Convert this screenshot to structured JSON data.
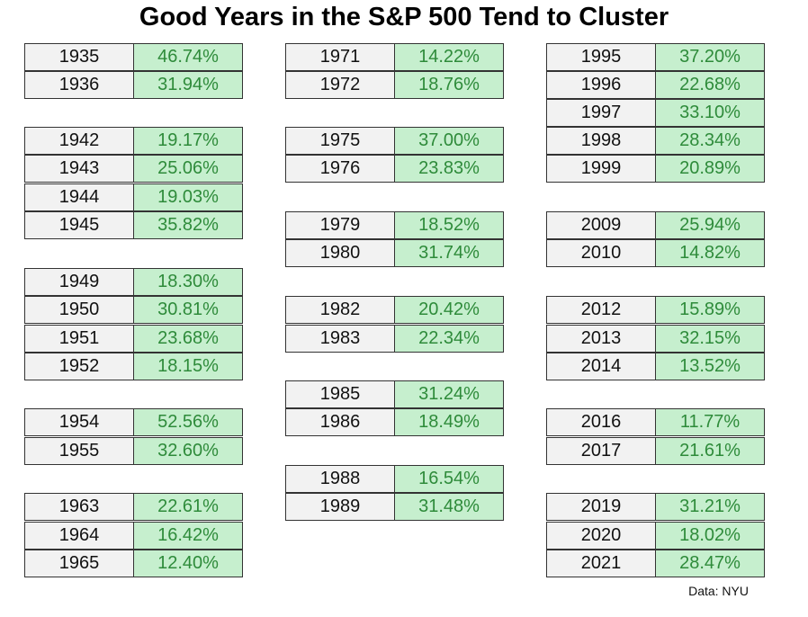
{
  "chart_data": {
    "type": "table",
    "title": "Good Years in the S&P 500 Tend to Cluster",
    "source": "Data: NYU",
    "columns": [
      {
        "rows": [
          {
            "year": "1935",
            "return": "46.74%",
            "value": 46.74
          },
          {
            "year": "1936",
            "return": "31.94%",
            "value": 31.94
          },
          {
            "year": "1942",
            "return": "19.17%",
            "value": 19.17
          },
          {
            "year": "1943",
            "return": "25.06%",
            "value": 25.06
          },
          {
            "year": "1944",
            "return": "19.03%",
            "value": 19.03
          },
          {
            "year": "1945",
            "return": "35.82%",
            "value": 35.82
          },
          {
            "year": "1949",
            "return": "18.30%",
            "value": 18.3
          },
          {
            "year": "1950",
            "return": "30.81%",
            "value": 30.81
          },
          {
            "year": "1951",
            "return": "23.68%",
            "value": 23.68
          },
          {
            "year": "1952",
            "return": "18.15%",
            "value": 18.15
          },
          {
            "year": "1954",
            "return": "52.56%",
            "value": 52.56
          },
          {
            "year": "1955",
            "return": "32.60%",
            "value": 32.6
          },
          {
            "year": "1963",
            "return": "22.61%",
            "value": 22.61
          },
          {
            "year": "1964",
            "return": "16.42%",
            "value": 16.42
          },
          {
            "year": "1965",
            "return": "12.40%",
            "value": 12.4
          }
        ]
      },
      {
        "rows": [
          {
            "year": "1971",
            "return": "14.22%",
            "value": 14.22
          },
          {
            "year": "1972",
            "return": "18.76%",
            "value": 18.76
          },
          {
            "year": "1975",
            "return": "37.00%",
            "value": 37.0
          },
          {
            "year": "1976",
            "return": "23.83%",
            "value": 23.83
          },
          {
            "year": "1979",
            "return": "18.52%",
            "value": 18.52
          },
          {
            "year": "1980",
            "return": "31.74%",
            "value": 31.74
          },
          {
            "year": "1982",
            "return": "20.42%",
            "value": 20.42
          },
          {
            "year": "1983",
            "return": "22.34%",
            "value": 22.34
          },
          {
            "year": "1985",
            "return": "31.24%",
            "value": 31.24
          },
          {
            "year": "1986",
            "return": "18.49%",
            "value": 18.49
          },
          {
            "year": "1988",
            "return": "16.54%",
            "value": 16.54
          },
          {
            "year": "1989",
            "return": "31.48%",
            "value": 31.48
          }
        ]
      },
      {
        "rows": [
          {
            "year": "1995",
            "return": "37.20%",
            "value": 37.2
          },
          {
            "year": "1996",
            "return": "22.68%",
            "value": 22.68
          },
          {
            "year": "1997",
            "return": "33.10%",
            "value": 33.1
          },
          {
            "year": "1998",
            "return": "28.34%",
            "value": 28.34
          },
          {
            "year": "1999",
            "return": "20.89%",
            "value": 20.89
          },
          {
            "year": "2009",
            "return": "25.94%",
            "value": 25.94
          },
          {
            "year": "2010",
            "return": "14.82%",
            "value": 14.82
          },
          {
            "year": "2012",
            "return": "15.89%",
            "value": 15.89
          },
          {
            "year": "2013",
            "return": "32.15%",
            "value": 32.15
          },
          {
            "year": "2014",
            "return": "13.52%",
            "value": 13.52
          },
          {
            "year": "2016",
            "return": "11.77%",
            "value": 11.77
          },
          {
            "year": "2017",
            "return": "21.61%",
            "value": 21.61
          },
          {
            "year": "2019",
            "return": "31.21%",
            "value": 31.21
          },
          {
            "year": "2020",
            "return": "18.02%",
            "value": 18.02
          },
          {
            "year": "2021",
            "return": "28.47%",
            "value": 28.47
          }
        ]
      }
    ]
  },
  "colors": {
    "year_cell_bg": "#f2f2f2",
    "return_cell_bg": "#c6efce",
    "return_text": "#2e8b3a",
    "border": "#333333"
  }
}
